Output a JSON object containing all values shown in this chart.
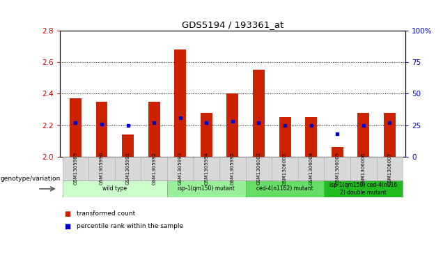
{
  "title": "GDS5194 / 193361_at",
  "samples": [
    "GSM1305989",
    "GSM1305990",
    "GSM1305991",
    "GSM1305992",
    "GSM1305993",
    "GSM1305994",
    "GSM1305995",
    "GSM1306002",
    "GSM1306003",
    "GSM1306004",
    "GSM1306005",
    "GSM1306006",
    "GSM1306007"
  ],
  "bar_values": [
    2.37,
    2.35,
    2.14,
    2.35,
    2.68,
    2.28,
    2.4,
    2.55,
    2.25,
    2.25,
    2.06,
    2.28,
    2.28
  ],
  "bar_base": 2.0,
  "percentile_values": [
    27,
    26,
    25,
    27,
    31,
    27,
    28,
    27,
    25,
    25,
    18,
    25,
    27
  ],
  "ylim_left": [
    2.0,
    2.8
  ],
  "ylim_right": [
    0,
    100
  ],
  "yticks_left": [
    2.0,
    2.2,
    2.4,
    2.6,
    2.8
  ],
  "yticks_right": [
    0,
    25,
    50,
    75,
    100
  ],
  "groups": [
    {
      "label": "wild type",
      "indices": [
        0,
        1,
        2,
        3
      ],
      "color": "#ccffcc"
    },
    {
      "label": "isp-1(qm150) mutant",
      "indices": [
        4,
        5,
        6
      ],
      "color": "#99ee99"
    },
    {
      "label": "ced-4(n1162) mutant",
      "indices": [
        7,
        8,
        9
      ],
      "color": "#66dd66"
    },
    {
      "label": "isp-1(qm150) ced-4(n116\n2) double mutant",
      "indices": [
        10,
        11,
        12
      ],
      "color": "#22bb22"
    }
  ],
  "bar_color": "#cc2200",
  "dot_color": "#0000cc",
  "genotype_label": "genotype/variation",
  "legend_items": [
    "transformed count",
    "percentile rank within the sample"
  ],
  "legend_colors": [
    "#cc2200",
    "#0000cc"
  ],
  "background_color": "#ffffff",
  "plot_bg_color": "#ffffff",
  "left_ytick_color": "#cc0000",
  "right_ytick_color": "#0000cc",
  "cell_bg": "#d8d8d8",
  "bar_width": 0.45
}
